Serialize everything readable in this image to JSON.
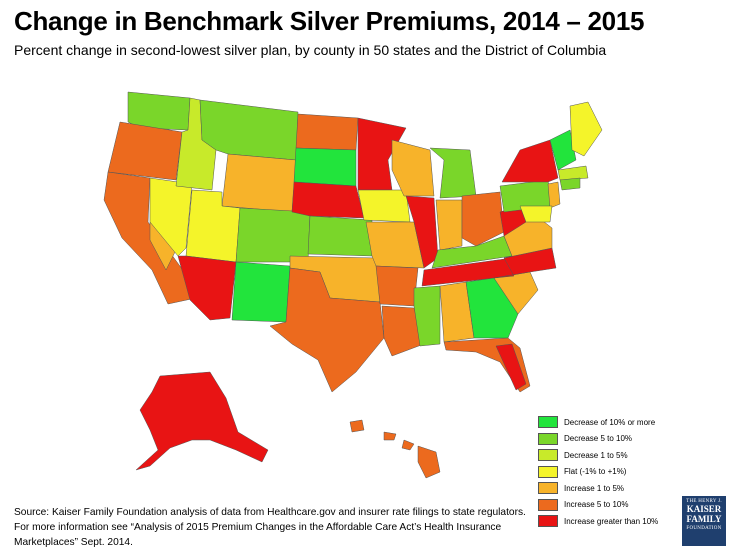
{
  "header": {
    "title": "Change in Benchmark Silver Premiums, 2014 – 2015",
    "subtitle": "Percent change in second-lowest silver plan, by county in 50 states and the District of Columbia"
  },
  "legend": {
    "items": [
      {
        "label": "Decrease of 10% or more",
        "color": "#22e43c"
      },
      {
        "label": "Decrease 5 to 10%",
        "color": "#7ad62a"
      },
      {
        "label": "Decrease 1 to 5%",
        "color": "#c8ea2a"
      },
      {
        "label": "Flat (-1% to +1%)",
        "color": "#f4f42a"
      },
      {
        "label": "Increase 1 to  5%",
        "color": "#f7b32a"
      },
      {
        "label": "Increase 5 to 10%",
        "color": "#ec6a1e"
      },
      {
        "label": "Increase greater than 10%",
        "color": "#e81414"
      }
    ]
  },
  "source": {
    "text": "Source: Kaiser Family Foundation analysis of data from Healthcare.gov and insurer rate filings to state regulators. For more information see  “Analysis of 2015 Premium Changes in the Affordable Care Act’s Health Insurance Marketplaces” Sept. 2014."
  },
  "logo": {
    "line1": "THE HENRY J.",
    "line2": "KAISER",
    "line3": "FAMILY",
    "line4": "FOUNDATION"
  },
  "colors": {
    "decrease10": "#22e43c",
    "decrease5to10": "#7ad62a",
    "decrease1to5": "#c8ea2a",
    "flat": "#f4f42a",
    "increase1to5": "#f7b32a",
    "increase5to10": "#ec6a1e",
    "increase10plus": "#e81414",
    "border": "#555555"
  }
}
